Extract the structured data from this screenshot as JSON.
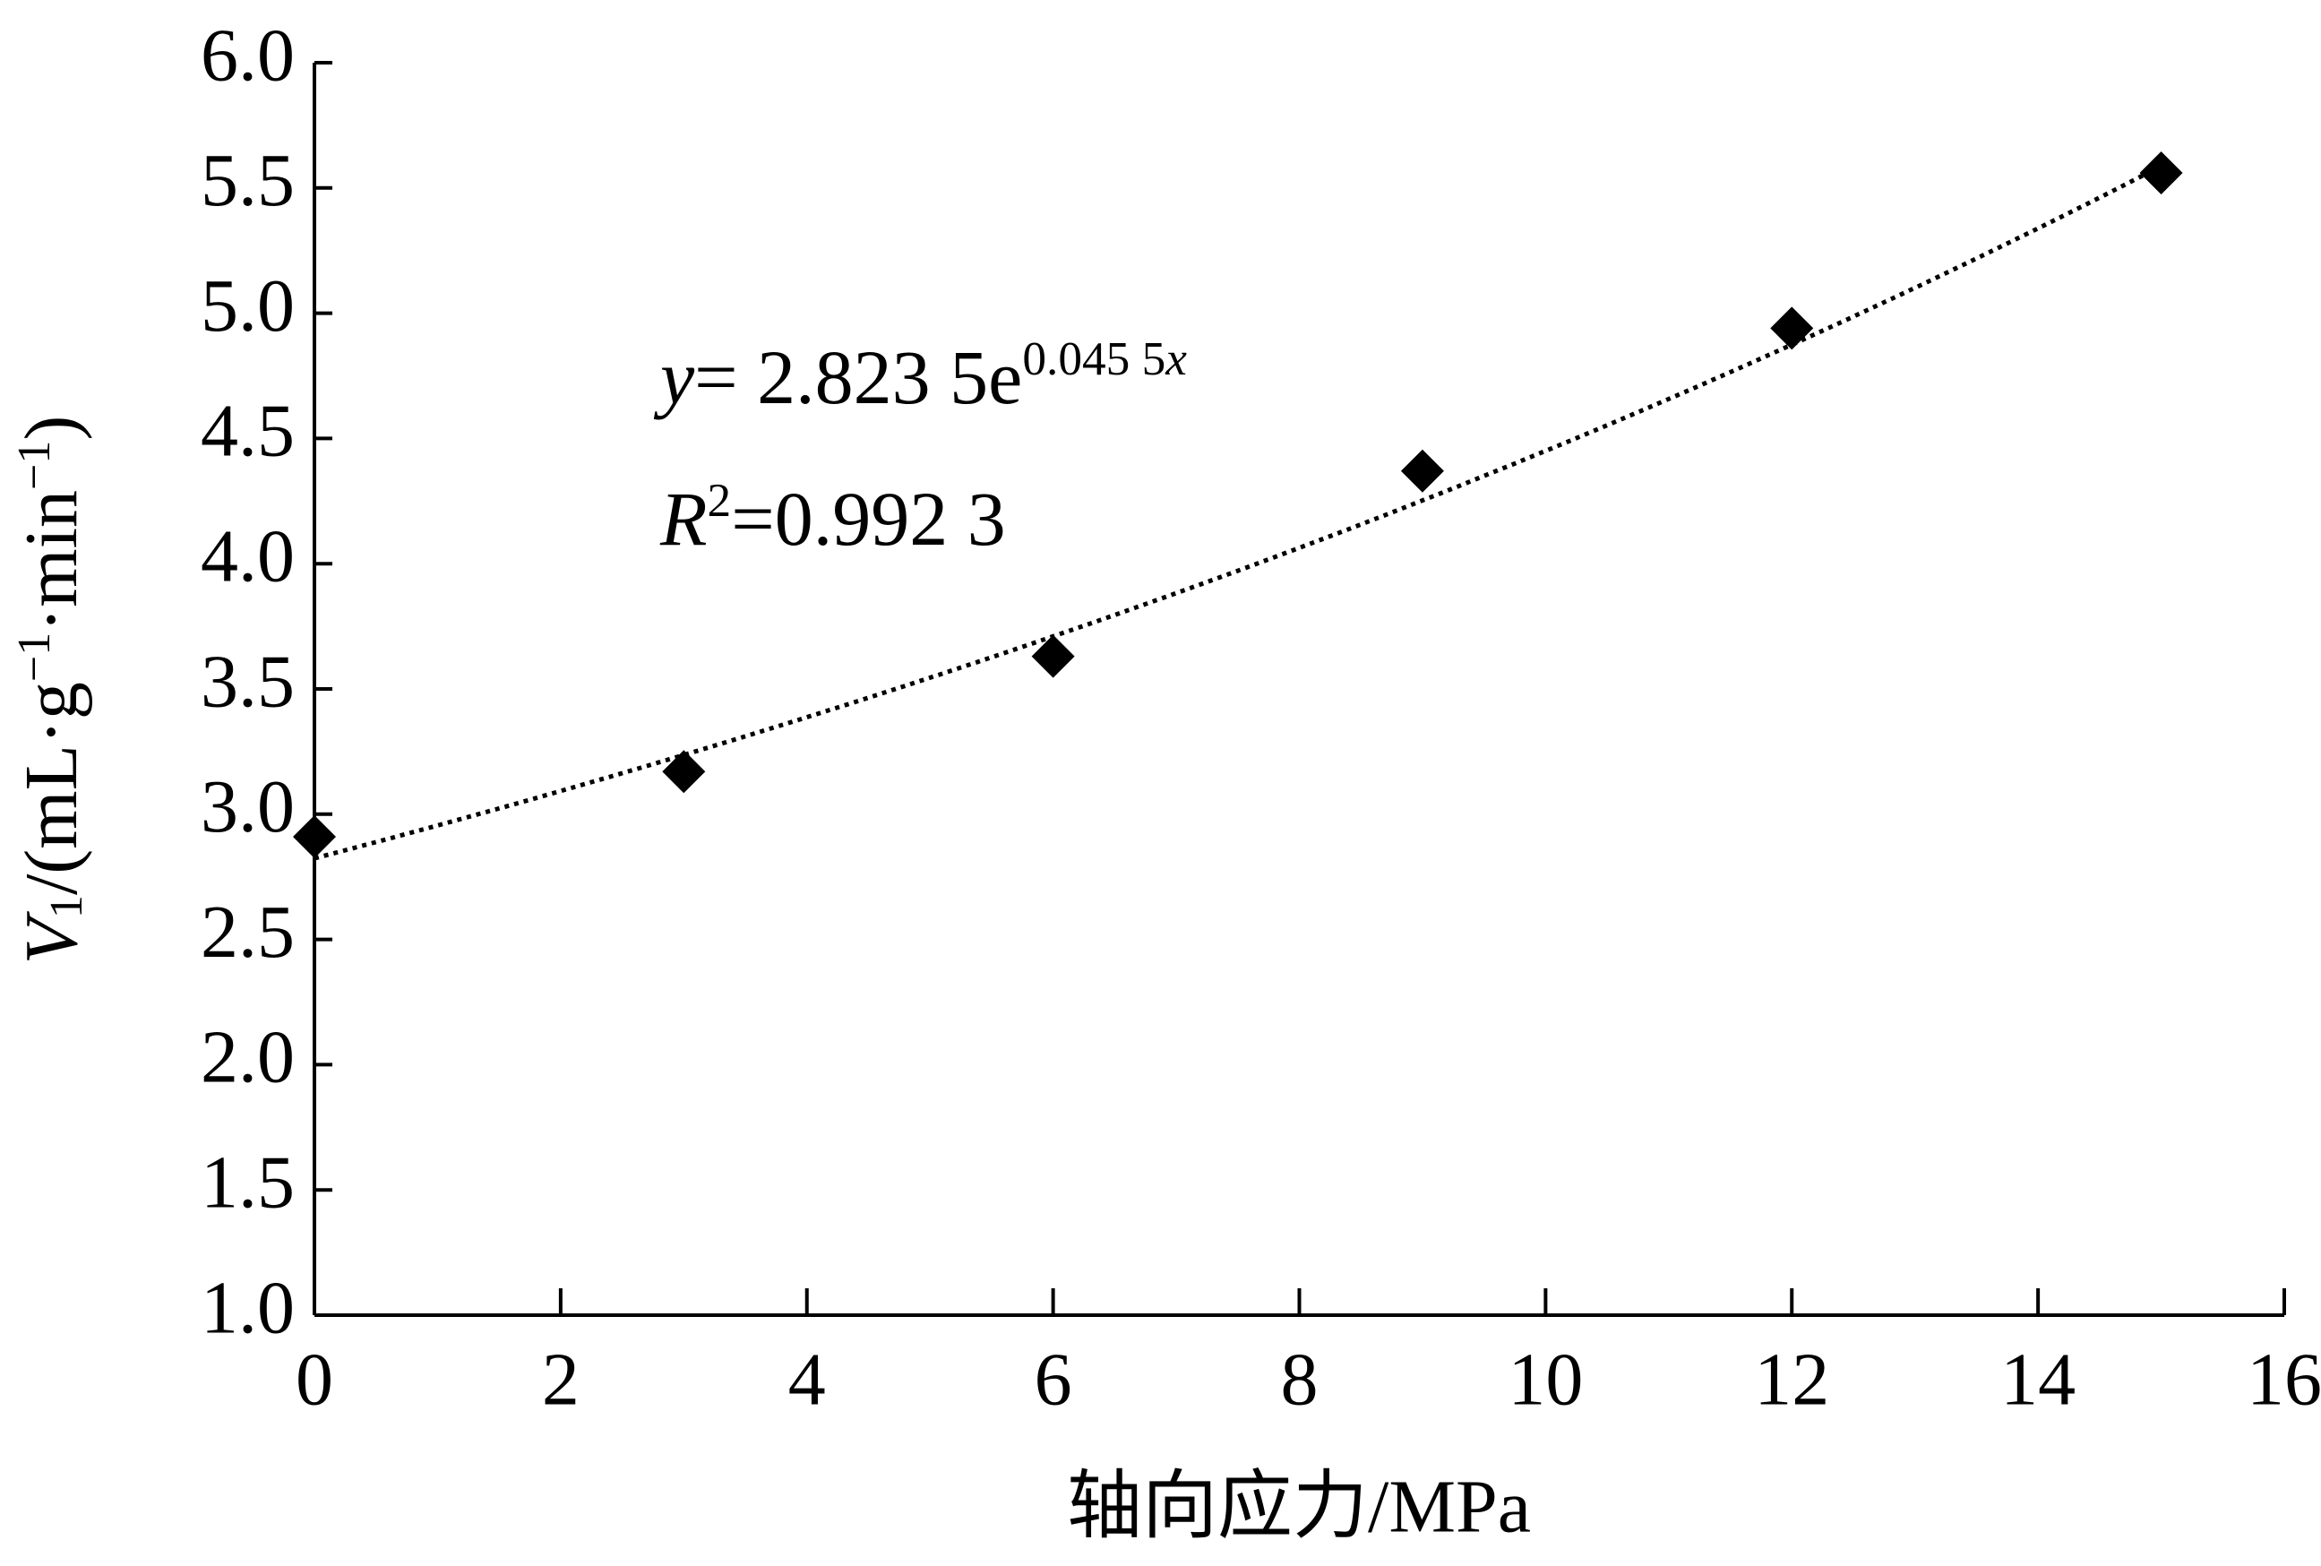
{
  "chart_data": {
    "type": "scatter",
    "x": [
      0,
      3,
      6,
      9,
      12,
      15
    ],
    "series": [
      {
        "color": "#000000",
        "marker": "diamond",
        "values": [
          2.91,
          3.17,
          3.63,
          4.37,
          4.94,
          5.56
        ]
      }
    ],
    "xlim": [
      0,
      16
    ],
    "xticks": [
      0,
      2,
      4,
      6,
      8,
      10,
      12,
      14,
      16
    ],
    "ylim": [
      1,
      6
    ],
    "yticks": [
      {
        "value": 1,
        "label": "1.0"
      },
      {
        "value": 1.5,
        "label": "1.5"
      },
      {
        "value": 2,
        "label": "2.0"
      },
      {
        "value": 2.5,
        "label": "2.5"
      },
      {
        "value": 3,
        "label": "3.0"
      },
      {
        "value": 3.5,
        "label": "3.5"
      },
      {
        "value": 4,
        "label": "4.0"
      },
      {
        "value": 4.5,
        "label": "4.5"
      },
      {
        "value": 5,
        "label": "5.0"
      },
      {
        "value": 5.5,
        "label": "5.5"
      },
      {
        "value": 6,
        "label": "6.0"
      }
    ],
    "xlabel": "轴向应力/MPa",
    "ylabel_parts": [
      {
        "text": "V",
        "style": "italic"
      },
      {
        "text": "1",
        "style": "sub"
      },
      {
        "text": "/(mL·g",
        "style": "normal"
      },
      {
        "text": "−1",
        "style": "sup"
      },
      {
        "text": "·min",
        "style": "normal"
      },
      {
        "text": "−1",
        "style": "sup"
      },
      {
        "text": ")",
        "style": "normal"
      }
    ],
    "trendline": {
      "type": "exponential",
      "a": 2.8235,
      "b": 0.0455,
      "color": "#000000",
      "style": "dotted"
    },
    "annotations": [
      [
        {
          "text": "y",
          "style": "italic"
        },
        {
          "text": "= 2.823 5e",
          "style": "normal"
        },
        {
          "text": "0.045 5",
          "style": "sup"
        },
        {
          "text": "x",
          "style": "sup-italic"
        }
      ],
      [
        {
          "text": "R",
          "style": "italic"
        },
        {
          "text": "2",
          "style": "sup"
        },
        {
          "text": "=0.992 3",
          "style": "normal"
        }
      ]
    ]
  }
}
